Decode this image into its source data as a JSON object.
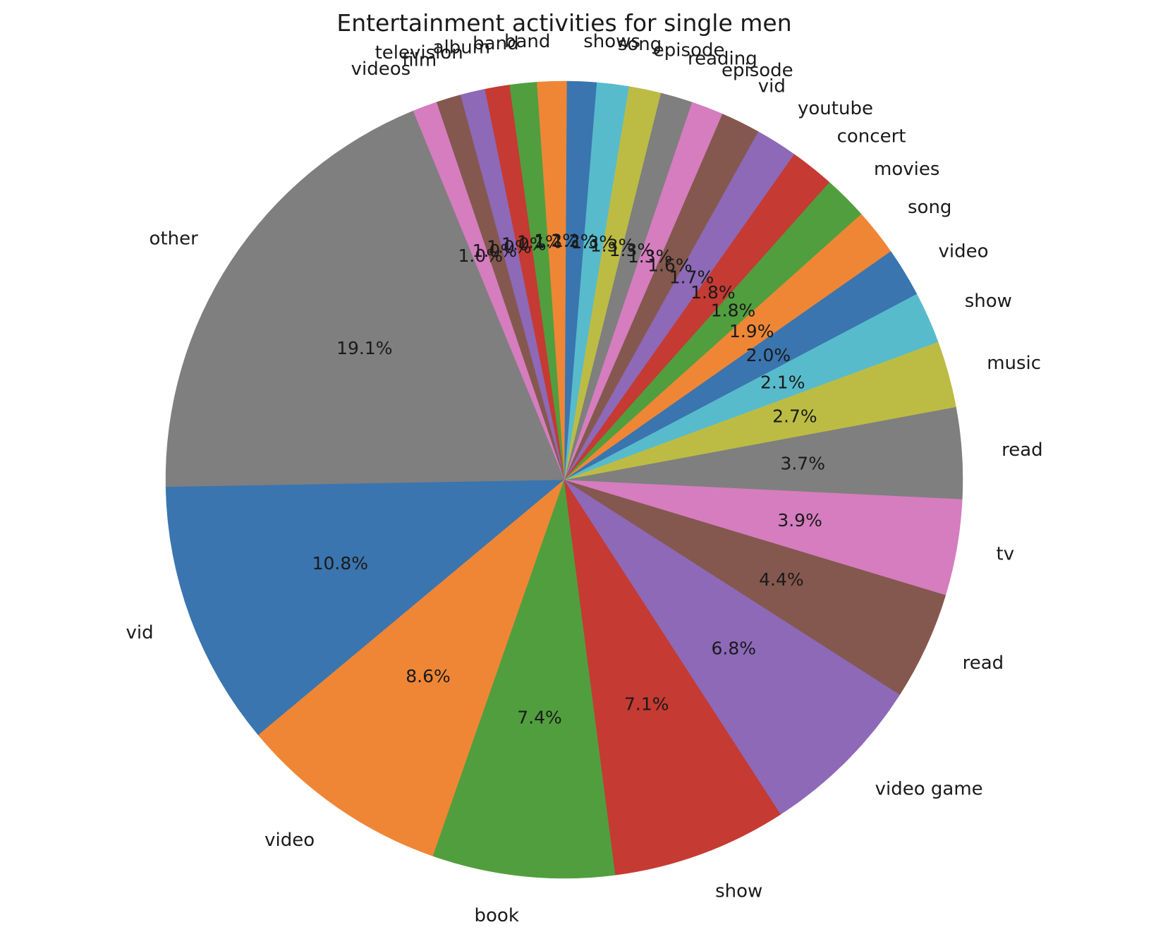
{
  "chart_data": {
    "type": "pie",
    "title": "Entertainment activities for single men",
    "slices": [
      {
        "label": "vid",
        "value": 10.8,
        "pct_label": "10.8%",
        "color": "#3a75af"
      },
      {
        "label": "video",
        "value": 8.6,
        "pct_label": "8.6%",
        "color": "#ef8636"
      },
      {
        "label": "book",
        "value": 7.4,
        "pct_label": "7.4%",
        "color": "#519e3e"
      },
      {
        "label": "show",
        "value": 7.1,
        "pct_label": "7.1%",
        "color": "#c53a32"
      },
      {
        "label": "video game",
        "value": 6.8,
        "pct_label": "6.8%",
        "color": "#8d69b8"
      },
      {
        "label": "read",
        "value": 4.4,
        "pct_label": "4.4%",
        "color": "#84584e"
      },
      {
        "label": "tv",
        "value": 3.9,
        "pct_label": "3.9%",
        "color": "#d57dbe"
      },
      {
        "label": "read",
        "value": 3.7,
        "pct_label": "3.7%",
        "color": "#7f7f7f"
      },
      {
        "label": "music",
        "value": 2.7,
        "pct_label": "2.7%",
        "color": "#bcbc45"
      },
      {
        "label": "show",
        "value": 2.1,
        "pct_label": "2.1%",
        "color": "#58bbcc"
      },
      {
        "label": "video",
        "value": 2.0,
        "pct_label": "2.0%",
        "color": "#3a75af"
      },
      {
        "label": "song",
        "value": 1.9,
        "pct_label": "1.9%",
        "color": "#ef8636"
      },
      {
        "label": "movies",
        "value": 1.8,
        "pct_label": "1.8%",
        "color": "#519e3e"
      },
      {
        "label": "concert",
        "value": 1.8,
        "pct_label": "1.8%",
        "color": "#c53a32"
      },
      {
        "label": "youtube",
        "value": 1.7,
        "pct_label": "1.7%",
        "color": "#8d69b8"
      },
      {
        "label": "vid",
        "value": 1.6,
        "pct_label": "1.6%",
        "color": "#84584e"
      },
      {
        "label": "episode",
        "value": 1.3,
        "pct_label": "1.3%",
        "color": "#d57dbe"
      },
      {
        "label": "reading",
        "value": 1.3,
        "pct_label": "1.3%",
        "color": "#7f7f7f"
      },
      {
        "label": "episode",
        "value": 1.3,
        "pct_label": "1.3%",
        "color": "#bcbc45"
      },
      {
        "label": "song",
        "value": 1.3,
        "pct_label": "1.3%",
        "color": "#58bbcc"
      },
      {
        "label": "shows",
        "value": 1.2,
        "pct_label": "1.2%",
        "color": "#3a75af"
      },
      {
        "label": "band",
        "value": 1.2,
        "pct_label": "1.2%",
        "color": "#ef8636"
      },
      {
        "label": "band",
        "value": 1.1,
        "pct_label": "1.1%",
        "color": "#519e3e"
      },
      {
        "label": "album",
        "value": 1.0,
        "pct_label": "1.0%",
        "color": "#c53a32"
      },
      {
        "label": "television",
        "value": 1.0,
        "pct_label": "1.0%",
        "color": "#8d69b8"
      },
      {
        "label": "film",
        "value": 1.0,
        "pct_label": "1.0%",
        "color": "#84584e"
      },
      {
        "label": "videos",
        "value": 1.0,
        "pct_label": "1.0%",
        "color": "#d57dbe"
      },
      {
        "label": "other",
        "value": 19.1,
        "pct_label": "19.1%",
        "color": "#7f7f7f"
      }
    ]
  }
}
